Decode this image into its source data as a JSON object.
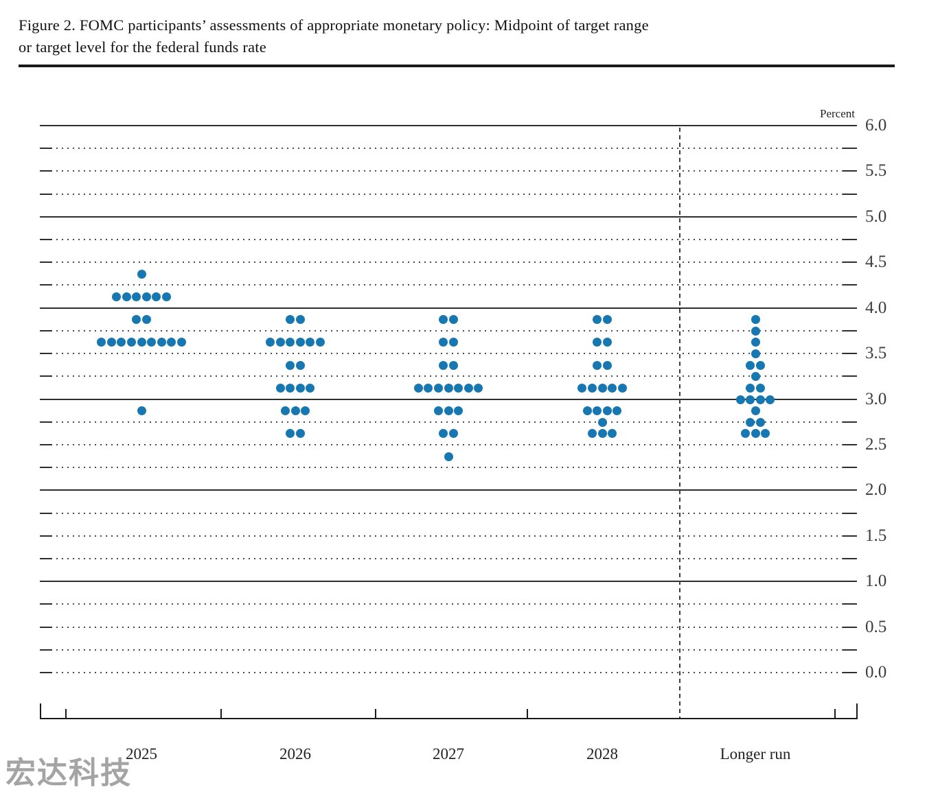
{
  "figure": {
    "title_line1": "Figure 2. FOMC participants’ assessments of appropriate monetary policy: Midpoint of target range",
    "title_line2": "or target level for the federal funds rate"
  },
  "watermark_text": "宏达科技",
  "chart_data": {
    "type": "scatter",
    "title": "FOMC participants’ assessments of appropriate monetary policy: Midpoint of target range or target level for the federal funds rate",
    "unit_label": "Percent",
    "categories": [
      "2025",
      "2026",
      "2027",
      "2028",
      "Longer run"
    ],
    "y_axis_labels": [
      "6.0",
      "5.5",
      "5.0",
      "4.5",
      "4.0",
      "3.5",
      "3.0",
      "2.5",
      "2.0",
      "1.5",
      "1.0",
      "0.5",
      "0.0"
    ],
    "ylim": [
      0.0,
      6.0
    ],
    "axis_label_step": 0.5,
    "minor_grid_step": 0.25,
    "grid_style": "solid lines at whole percents, dotted lines at quarter percents",
    "separator": "dashed vertical line between 2028 and Longer run",
    "dot_color": "#1778b1",
    "series": [
      {
        "category": "2025",
        "dots": [
          {
            "value": 4.375,
            "count": 1
          },
          {
            "value": 4.125,
            "count": 6
          },
          {
            "value": 3.875,
            "count": 2
          },
          {
            "value": 3.625,
            "count": 9
          },
          {
            "value": 2.875,
            "count": 1
          }
        ]
      },
      {
        "category": "2026",
        "dots": [
          {
            "value": 3.875,
            "count": 2
          },
          {
            "value": 3.625,
            "count": 6
          },
          {
            "value": 3.375,
            "count": 2
          },
          {
            "value": 3.125,
            "count": 4
          },
          {
            "value": 2.875,
            "count": 3
          },
          {
            "value": 2.625,
            "count": 2
          }
        ]
      },
      {
        "category": "2027",
        "dots": [
          {
            "value": 3.875,
            "count": 2
          },
          {
            "value": 3.625,
            "count": 2
          },
          {
            "value": 3.375,
            "count": 2
          },
          {
            "value": 3.125,
            "count": 7
          },
          {
            "value": 2.875,
            "count": 3
          },
          {
            "value": 2.625,
            "count": 2
          },
          {
            "value": 2.375,
            "count": 1
          }
        ]
      },
      {
        "category": "2028",
        "dots": [
          {
            "value": 3.875,
            "count": 2
          },
          {
            "value": 3.625,
            "count": 2
          },
          {
            "value": 3.375,
            "count": 2
          },
          {
            "value": 3.125,
            "count": 5
          },
          {
            "value": 2.875,
            "count": 4
          },
          {
            "value": 2.75,
            "count": 1
          },
          {
            "value": 2.625,
            "count": 3
          }
        ]
      },
      {
        "category": "Longer run",
        "dots": [
          {
            "value": 3.875,
            "count": 1
          },
          {
            "value": 3.75,
            "count": 1
          },
          {
            "value": 3.625,
            "count": 1
          },
          {
            "value": 3.5,
            "count": 1
          },
          {
            "value": 3.375,
            "count": 2
          },
          {
            "value": 3.25,
            "count": 1
          },
          {
            "value": 3.125,
            "count": 2
          },
          {
            "value": 3.0,
            "count": 4
          },
          {
            "value": 2.875,
            "count": 1
          },
          {
            "value": 2.75,
            "count": 2
          },
          {
            "value": 2.625,
            "count": 3
          }
        ]
      }
    ]
  }
}
